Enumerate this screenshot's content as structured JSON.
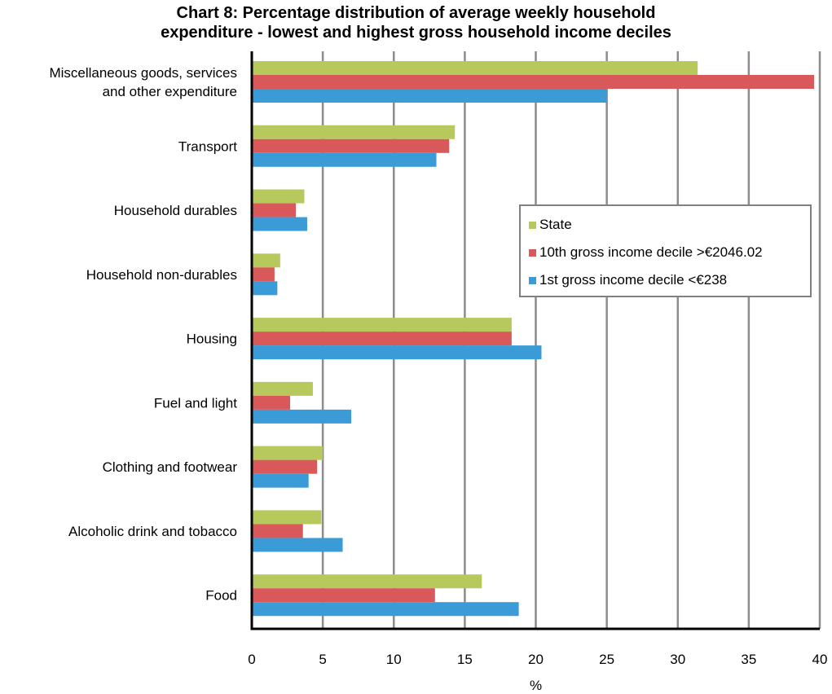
{
  "chart_data": {
    "type": "bar",
    "orientation": "horizontal",
    "title": [
      "Chart 8: Percentage  distribution of average  weekly  household",
      "expenditure - lowest  and  highest gross  household income deciles"
    ],
    "xlabel": "%",
    "ylabel": "",
    "xlim": [
      0,
      40
    ],
    "xticks": [
      "0",
      "5",
      "10",
      "15",
      "20",
      "25",
      "30",
      "35",
      "40"
    ],
    "grid": "vertical",
    "legend_position": "right",
    "categories": [
      [
        "Miscellaneous goods, services",
        "and other expenditure"
      ],
      [
        "Transport"
      ],
      [
        "Household durables"
      ],
      [
        "Household non-durables"
      ],
      [
        "Housing"
      ],
      [
        "Fuel and light"
      ],
      [
        "Clothing and footwear"
      ],
      [
        "Alcoholic drink and tobacco"
      ],
      [
        "Food"
      ]
    ],
    "series": [
      {
        "name": "State",
        "color": "#b7c85d",
        "values": [
          31.4,
          14.3,
          3.7,
          2.0,
          18.3,
          4.3,
          5.0,
          4.9,
          16.2
        ]
      },
      {
        "name": "10th gross income decile >€2046.02",
        "color": "#d9595a",
        "values": [
          39.6,
          13.9,
          3.1,
          1.6,
          18.3,
          2.7,
          4.6,
          3.6,
          12.9
        ]
      },
      {
        "name": "1st gross income decile <€238",
        "color": "#3a9bd7",
        "values": [
          25.0,
          13.0,
          3.9,
          1.8,
          20.4,
          7.0,
          4.0,
          6.4,
          18.8
        ]
      }
    ]
  },
  "colors": {
    "grid": "#8c8c8c",
    "axis": "#000000",
    "legend_border": "#808080"
  }
}
